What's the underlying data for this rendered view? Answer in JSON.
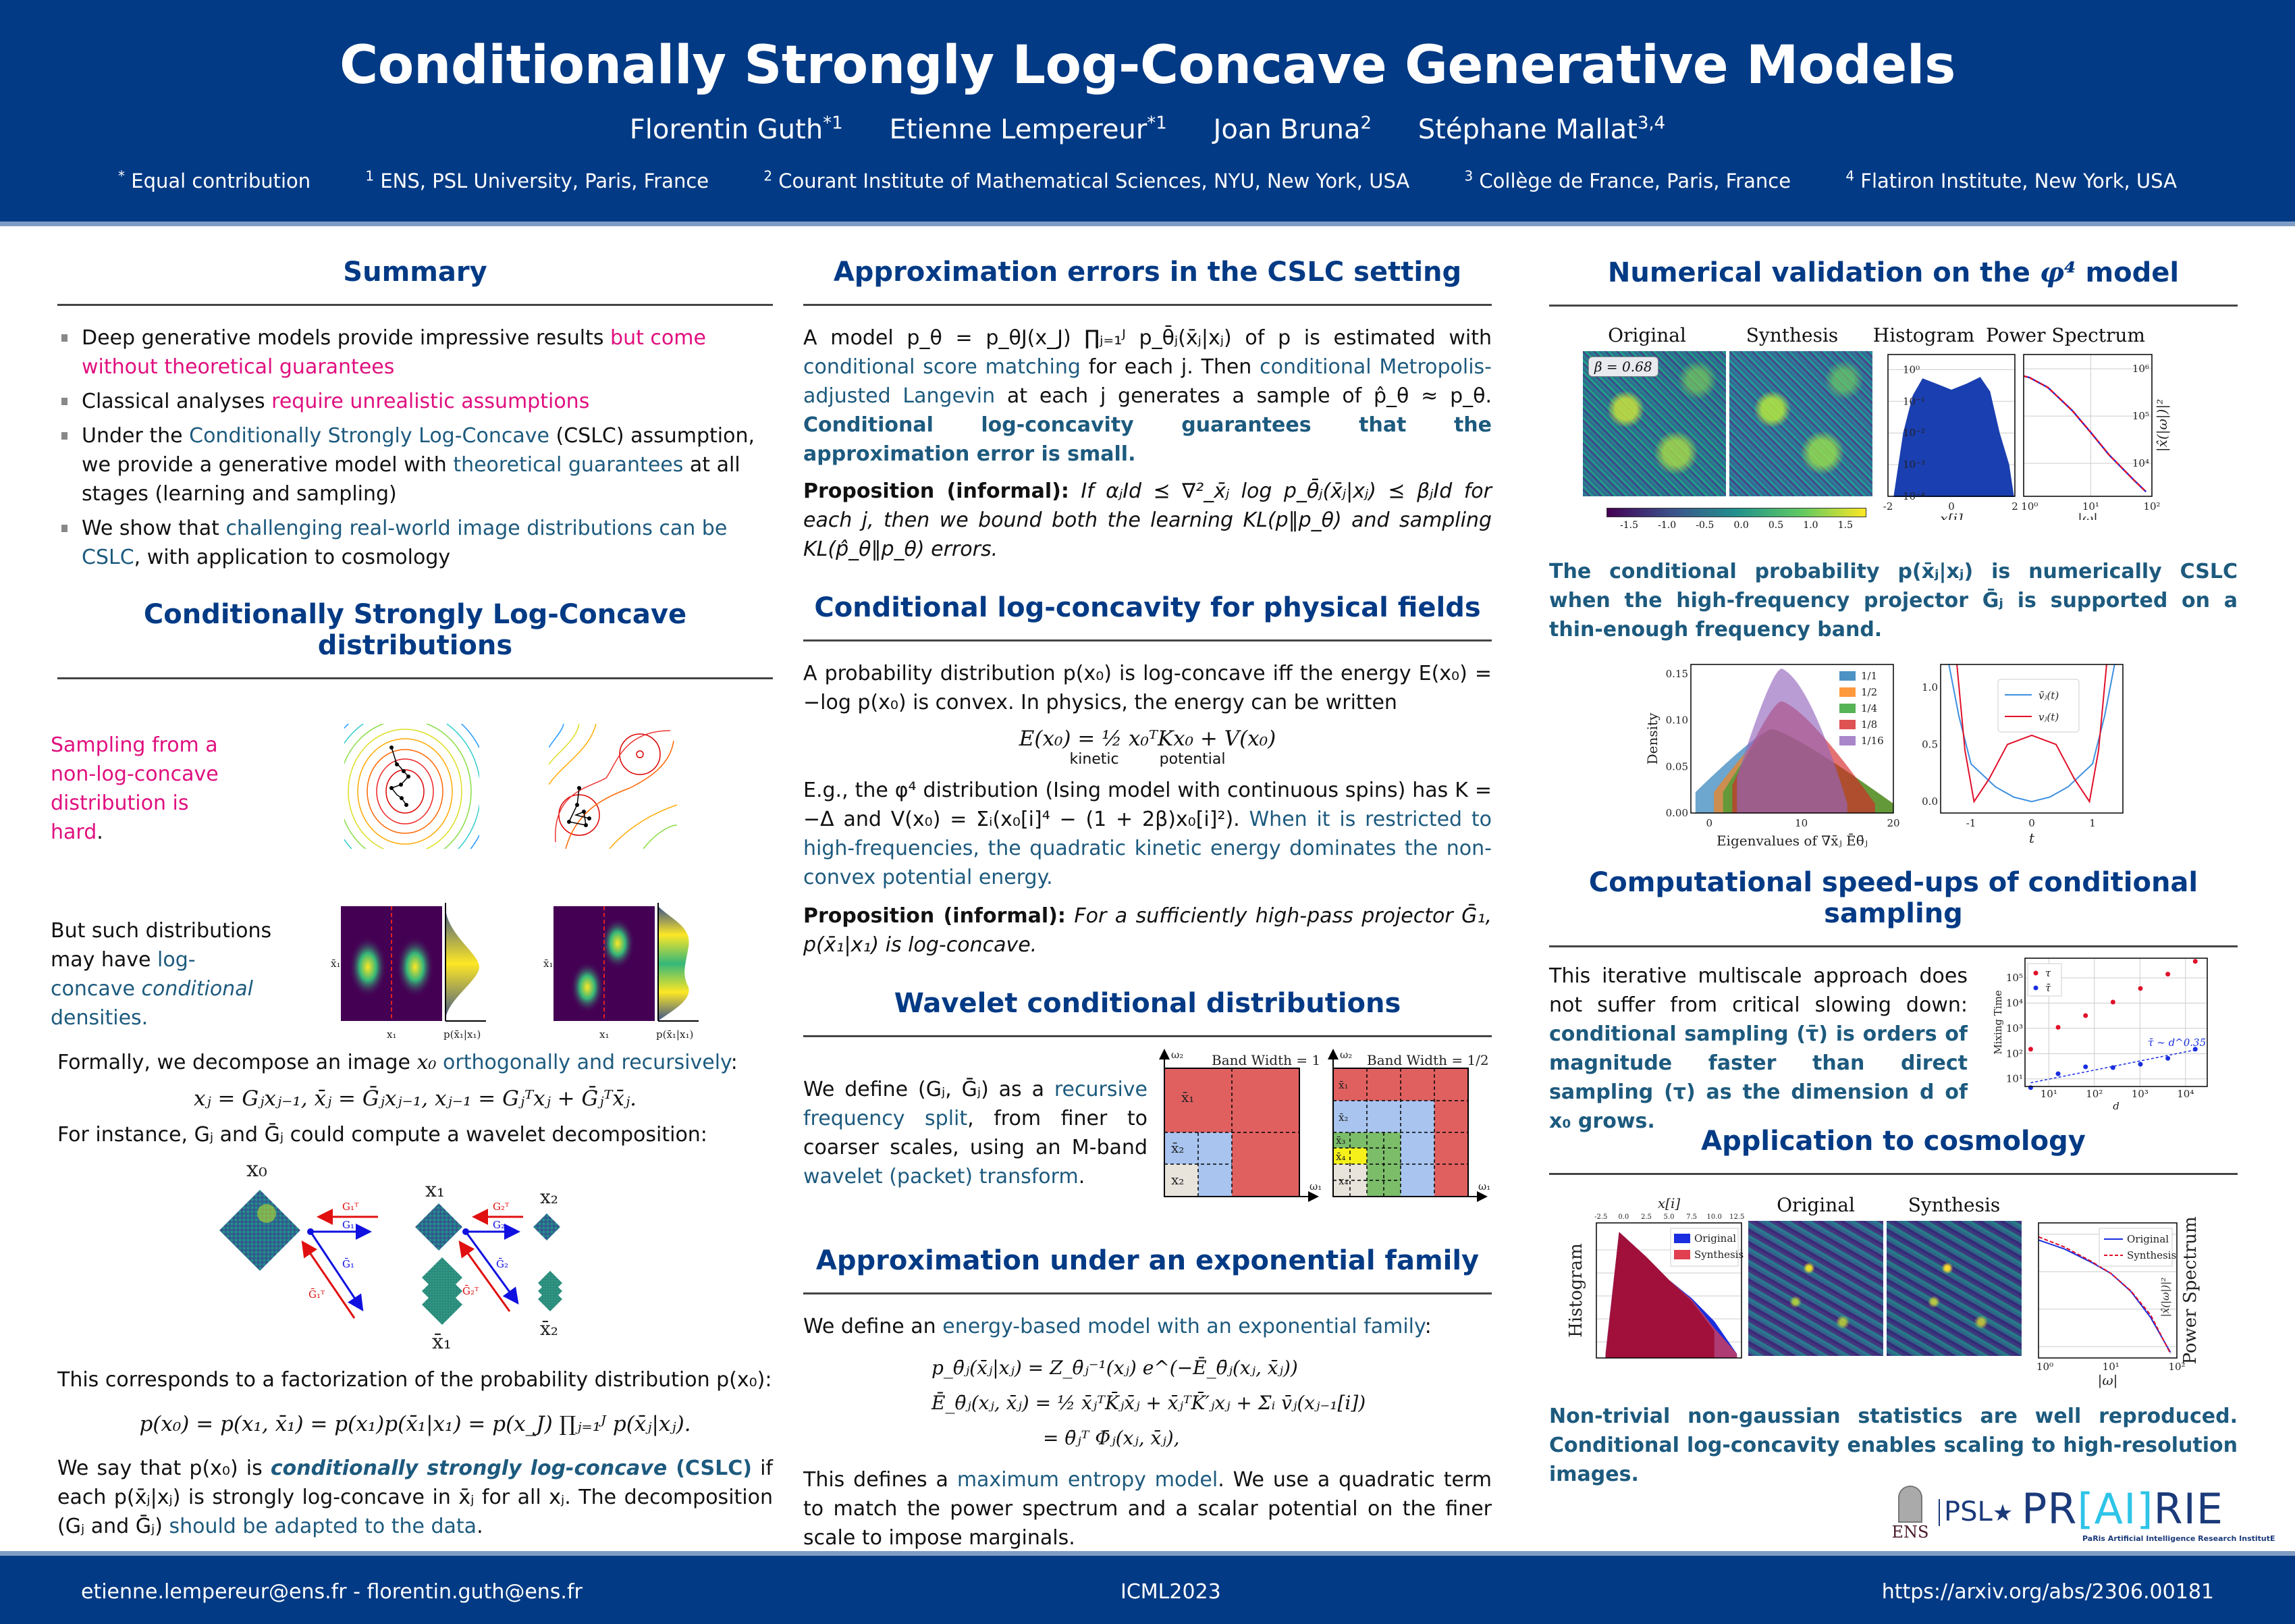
{
  "header": {
    "title": "Conditionally Strongly Log-Concave Generative Models",
    "authors": [
      {
        "name": "Florentin Guth",
        "sup": "*1"
      },
      {
        "name": "Etienne Lempereur",
        "sup": "*1"
      },
      {
        "name": "Joan Bruna",
        "sup": "2"
      },
      {
        "name": "Stéphane Mallat",
        "sup": "3,4"
      }
    ],
    "affiliations": [
      {
        "sup": "*",
        "text": "Equal contribution"
      },
      {
        "sup": "1",
        "text": "ENS, PSL University, Paris, France"
      },
      {
        "sup": "2",
        "text": "Courant Institute of Mathematical Sciences, NYU, New York, USA"
      },
      {
        "sup": "3",
        "text": "Collège de France, Paris, France"
      },
      {
        "sup": "4",
        "text": "Flatiron Institute, New York, USA"
      }
    ]
  },
  "colors": {
    "header_bg": "#023a85",
    "stripe": "#7f9cc4",
    "section_title": "#023a85",
    "highlight_blue": "#1d5a7e",
    "highlight_pink": "#e0107f"
  },
  "summary": {
    "title": "Summary",
    "items": [
      {
        "plain": "Deep generative models provide impressive results ",
        "pink": "but come without theoretical guarantees"
      },
      {
        "plain": "Classical analyses ",
        "pink": "require unrealistic assumptions"
      },
      {
        "plain": "Under the ",
        "blue": "Conditionally Strongly Log-Concave",
        "plain2": " (CSLC) assumption, we provide a generative model with ",
        "blue2": "theoretical guarantees",
        "plain3": " at all stages (learning and sampling)"
      },
      {
        "plain": "We show that ",
        "blue": "challenging real-world image distributions can be CSLC",
        "plain2": ", with application to cosmology"
      }
    ]
  },
  "cslc": {
    "title": "Conditionally Strongly Log-Concave distributions",
    "sampling_text": "Sampling from a non-log-concave distribution is hard",
    "sampling_dot": ".",
    "but_text_1": "But such distributions may have ",
    "but_text_blue": "log-concave",
    "but_text_ital": "conditional",
    "but_text_2": " densities.",
    "axis_labels": {
      "x": "x₁",
      "y": "x̄₁",
      "marginal": "p(x̄₁|x₁)"
    },
    "formal_1": "Formally, we decompose an image ",
    "formal_var": "x₀",
    "formal_blue": "orthogonally and recursively",
    "formal_end": ":",
    "eq_decomp": "xⱼ = Gⱼxⱼ₋₁,   x̄ⱼ = Ḡⱼxⱼ₋₁,   xⱼ₋₁ = Gⱼᵀxⱼ + Ḡⱼᵀx̄ⱼ.",
    "instance_text": "For instance, Gⱼ and Ḡⱼ could compute a wavelet decomposition:",
    "diagram_labels": {
      "x0": "x₀",
      "x1": "x₁",
      "x2": "x₂",
      "xb1": "x̄₁",
      "xb2": "x̄₂",
      "G1T": "G₁ᵀ",
      "G1": "G₁",
      "G2T": "G₂ᵀ",
      "G2": "G₂",
      "Gb1": "Ḡ₁",
      "Gb1T": "Ḡ₁ᵀ",
      "Gb2": "Ḡ₂",
      "Gb2T": "Ḡ₂ᵀ"
    },
    "factor_text": "This corresponds to a factorization of the probability distribution p(x₀):",
    "eq_factor": "p(x₀) = p(x₁, x̄₁) = p(x₁)p(x̄₁|x₁) = p(x_J) ∏ⱼ₌₁ᴶ p(x̄ⱼ|xⱼ).",
    "say_1": "We say that p(x₀) is ",
    "say_bold_ital": "conditionally strongly log-concave",
    "say_bold": " (CSLC)",
    "say_2": " if each p(x̄ⱼ|xⱼ) is strongly log-concave in x̄ⱼ for all xⱼ. The decomposition (Gⱼ and Ḡⱼ) ",
    "say_blue": "should be adapted to the data",
    "say_end": "."
  },
  "approx": {
    "title": "Approximation errors in the CSLC setting",
    "p1_a": "A model p_θ = p_θJ(x_J) ∏ⱼ₌₁ᴶ p_θ̄ⱼ(x̄ⱼ|xⱼ) of p is estimated with ",
    "p1_blue1": "conditional score matching",
    "p1_b": " for each j. Then ",
    "p1_blue2": "conditional Metropolis-adjusted Langevin",
    "p1_c": " at each j generates a sample of p̂_θ ≈ p_θ. ",
    "p1_bold_blue": "Conditional log-concavity guarantees that the approximation error is small.",
    "prop_label": "Proposition (informal):",
    "prop_text": " If αⱼId ⪯ ∇²_x̄ⱼ log p_θ̄ⱼ(x̄ⱼ|xⱼ) ⪯ βⱼId for each j, then we bound both the learning KL(p‖p_θ) and sampling KL(p̂_θ‖p_θ) errors."
  },
  "physical": {
    "title": "Conditional log-concavity for physical fields",
    "p1": "A probability distribution p(x₀) is log-concave iff the energy E(x₀) = −log p(x₀) is convex. In physics, the energy can be written",
    "eq_energy": "E(x₀) = ½ x₀ᵀKx₀ + V(x₀)",
    "kinetic": "kinetic",
    "potential": "potential",
    "p2_a": "E.g., the φ⁴ distribution (Ising model with continuous spins) has K = −Δ and V(x₀) = Σᵢ(x₀[i]⁴ − (1 + 2β)x₀[i]²). ",
    "p2_blue": "When it is restricted to high-frequencies, the quadratic kinetic energy dominates the non-convex potential energy.",
    "prop_label": "Proposition (informal):",
    "prop_text": " For a sufficiently high-pass projector Ḡ₁, p(x̄₁|x₁) is log-concave."
  },
  "wavelet": {
    "title": "Wavelet conditional distributions",
    "p_a": "We define (Gⱼ, Ḡⱼ) as a ",
    "p_blue1": "recursive frequency split",
    "p_b": ", from finer to coarser scales, using an M-band ",
    "p_blue2": "wavelet (packet) transform",
    "p_end": ".",
    "fig1_title": "Band Width = 1",
    "fig2_title": "Band Width = 1/2",
    "axis_w1": "ω₁",
    "axis_w2": "ω₂",
    "fig1_labels": [
      "x̄₁",
      "x̄₂",
      "x₂"
    ],
    "fig2_labels": [
      "x̄₁",
      "x̄₂",
      "x̄₃",
      "x̄₄",
      "x₄"
    ]
  },
  "expfam": {
    "title": "Approximation under an exponential family",
    "p1_a": "We define an ",
    "p1_blue": "energy-based model with an exponential family",
    "p1_end": ":",
    "eq1": "p_θ̄ⱼ(x̄ⱼ|xⱼ) = Z_θ̄ⱼ⁻¹(xⱼ) e^(−Ē_θ̄ⱼ(xⱼ, x̄ⱼ))",
    "eq2": "Ē_θ̄ⱼ(xⱼ, x̄ⱼ) = ½ x̄ⱼᵀK̄ⱼx̄ⱼ + x̄ⱼᵀK̄′ⱼxⱼ + Σᵢ v̄ⱼ(xⱼ₋₁[i])",
    "eq3": "= θ̄ⱼᵀ Φ̄ⱼ(xⱼ, x̄ⱼ),",
    "p2_a": "This defines a ",
    "p2_blue": "maximum entropy model",
    "p2_b": ". We use a quadratic term to match the power spectrum and a scalar potential on the finer scale to impose marginals."
  },
  "numerical": {
    "title_a": "Numerical validation on the ",
    "title_math": "φ⁴",
    "title_b": " model",
    "panel_titles": [
      "Original",
      "Synthesis",
      "Histogram",
      "Power Spectrum"
    ],
    "beta_label": "β = 0.68",
    "colorbar_ticks": [
      "-1.5",
      "-1.0",
      "-0.5",
      "0.0",
      "0.5",
      "1.0",
      "1.5"
    ],
    "conclusion": "The conditional probability p(x̄ⱼ|xⱼ) is numerically CSLC when the high-frequency projector Ḡⱼ is supported on a thin-enough frequency band."
  },
  "speedup": {
    "title": "Computational speed-ups of conditional sampling",
    "p_a": "This iterative multiscale approach does not suffer from critical slowing down: ",
    "p_blue": "conditional sampling (τ̄) is orders of magnitude faster than direct sampling (τ) as the dimension d of x₀ grows."
  },
  "cosmology": {
    "title": "Application to cosmology",
    "panel_titles": [
      "Original",
      "Synthesis"
    ],
    "hist_ylabel": "Histogram",
    "ps_ylabel": "Power Spectrum",
    "conclusion": "Non-trivial non-gaussian statistics are well reproduced. Conditional log-concavity enables scaling to high-resolution images."
  },
  "logos": {
    "ens": "ENS",
    "psl": "PSL",
    "prairie_a": "PR",
    "prairie_b": "[AI]",
    "prairie_c": "RIE",
    "prairie_sub": "PaRis Artificial Intelligence Research InstitutE"
  },
  "footer": {
    "emails": "etienne.lempereur@ens.fr - florentin.guth@ens.fr",
    "conference": "ICML2023",
    "url": "https://arxiv.org/abs/2306.00181"
  },
  "chart_data": [
    {
      "id": "phi4-histogram",
      "type": "area",
      "title": "Histogram",
      "xlabel": "x[i]",
      "ylabel": "",
      "xlim": [
        -2,
        2
      ],
      "yscale": "log",
      "ylim": [
        0.0001,
        3
      ],
      "x_ticks": [
        "-2",
        "0",
        "2"
      ],
      "y_ticks": [
        "10⁰",
        "10⁻¹",
        "10⁻²",
        "10⁻³",
        "10⁻⁴"
      ],
      "series": [
        {
          "name": "Original",
          "color": "#1a3fb0",
          "x": [
            -1.8,
            -1.5,
            -1.2,
            -0.9,
            -0.5,
            0,
            0.5,
            0.9,
            1.2,
            1.5,
            1.8,
            1.95
          ],
          "y": [
            0.0001,
            0.01,
            0.15,
            0.5,
            0.35,
            0.22,
            0.35,
            0.55,
            0.2,
            0.01,
            0.001,
            0.0001
          ]
        },
        {
          "name": "Synthesis",
          "color": "#8b0013",
          "x": [
            -1.8,
            -1.5,
            -1.2,
            -0.9,
            -0.5,
            0,
            0.5,
            0.9,
            1.2,
            1.5,
            1.8,
            1.95
          ],
          "y": [
            0.0001,
            0.01,
            0.15,
            0.5,
            0.35,
            0.22,
            0.35,
            0.55,
            0.2,
            0.01,
            0.001,
            0.0001
          ]
        }
      ]
    },
    {
      "id": "phi4-power-spectrum",
      "type": "line",
      "title": "Power Spectrum",
      "xlabel": "|ω|",
      "ylabel": "|x̂(|ω|)|²",
      "xscale": "log",
      "yscale": "log",
      "xlim": [
        0.8,
        100
      ],
      "ylim": [
        2000,
        2000000
      ],
      "x_ticks": [
        "10⁰",
        "10¹",
        "10²"
      ],
      "y_ticks": [
        "10⁶",
        "10⁵",
        "10⁴"
      ],
      "series": [
        {
          "name": "Original",
          "color": "#1a2ee0",
          "x": [
            0.8,
            1,
            2,
            5,
            10,
            20,
            50,
            80
          ],
          "y": [
            700000,
            650000,
            400000,
            130000,
            45000,
            15000,
            4500,
            2500
          ]
        },
        {
          "name": "Synthesis",
          "color": "#e0102a",
          "x": [
            0.8,
            1,
            2,
            5,
            10,
            20,
            50,
            80
          ],
          "y": [
            700000,
            650000,
            400000,
            130000,
            45000,
            15000,
            4500,
            2500
          ]
        }
      ]
    },
    {
      "id": "eigenvalue-density",
      "type": "bar",
      "xlabel": "Eigenvalues of ∇x̄ⱼ Ēθ̄ⱼ",
      "ylabel": "Density",
      "xlim": [
        -2,
        20
      ],
      "ylim": [
        0,
        0.16
      ],
      "x_ticks": [
        "0",
        "10",
        "20"
      ],
      "y_ticks": [
        "0.00",
        "0.05",
        "0.10",
        "0.15"
      ],
      "legend_position": "top-right",
      "series": [
        {
          "name": "1/1",
          "color": "#1f77b4",
          "peak_x": 7,
          "peak_y": 0.09,
          "support": [
            -1.5,
            20
          ]
        },
        {
          "name": "1/2",
          "color": "#ff7f0e",
          "peak_x": 7,
          "peak_y": 0.09,
          "support": [
            0.5,
            20
          ]
        },
        {
          "name": "1/4",
          "color": "#2ca02c",
          "peak_x": 7,
          "peak_y": 0.09,
          "support": [
            1.5,
            20
          ]
        },
        {
          "name": "1/8",
          "color": "#d62728",
          "peak_x": 8,
          "peak_y": 0.12,
          "support": [
            2.5,
            18
          ]
        },
        {
          "name": "1/16",
          "color": "#9467bd",
          "peak_x": 8,
          "peak_y": 0.155,
          "support": [
            3,
            15
          ]
        }
      ]
    },
    {
      "id": "potential-curves",
      "type": "line",
      "xlabel": "t",
      "ylabel": "",
      "xlim": [
        -1.5,
        1.5
      ],
      "ylim": [
        -0.1,
        1.2
      ],
      "x_ticks": [
        "-1",
        "0",
        "1"
      ],
      "y_ticks": [
        "0.0",
        "0.5",
        "1.0"
      ],
      "legend_position": "top-center",
      "series": [
        {
          "name": "v̄ⱼ(t)",
          "color": "#3d8fe0",
          "x": [
            -1.4,
            -1.2,
            -1,
            -0.6,
            -0.3,
            0,
            0.3,
            0.6,
            1,
            1.2,
            1.4
          ],
          "y": [
            1.3,
            0.75,
            0.33,
            0.13,
            0.04,
            0.0,
            0.04,
            0.13,
            0.33,
            0.75,
            1.3
          ]
        },
        {
          "name": "vⱼ(t)",
          "color": "#e0102a",
          "x": [
            -1.25,
            -1.1,
            -0.95,
            -0.7,
            -0.4,
            0,
            0.4,
            0.7,
            0.95,
            1.1,
            1.25
          ],
          "y": [
            1.3,
            0.45,
            0.0,
            0.2,
            0.5,
            0.58,
            0.5,
            0.2,
            0.0,
            0.45,
            1.3
          ]
        }
      ]
    },
    {
      "id": "mixing-time",
      "type": "scatter",
      "xlabel": "d",
      "ylabel": "Mixing Time",
      "xscale": "log",
      "yscale": "log",
      "xlim": [
        3,
        30000
      ],
      "ylim": [
        5,
        600000
      ],
      "x_ticks": [
        "10¹",
        "10²",
        "10³",
        "10⁴"
      ],
      "y_ticks": [
        "10¹",
        "10²",
        "10³",
        "10⁴",
        "10⁵"
      ],
      "legend_position": "top-left",
      "annotation": "τ̄ ∼ d^0.35",
      "series": [
        {
          "name": "τ",
          "color": "#e0102a",
          "x": [
            4,
            16,
            64,
            256,
            1024,
            4096,
            16384
          ],
          "y": [
            150,
            1100,
            3200,
            11000,
            38000,
            140000,
            450000
          ]
        },
        {
          "name": "τ̄",
          "color": "#1a2ee0",
          "x": [
            4,
            16,
            64,
            256,
            1024,
            4096,
            16384
          ],
          "y": [
            4.5,
            16,
            30,
            28,
            38,
            65,
            150
          ]
        }
      ]
    },
    {
      "id": "cosmo-histogram",
      "type": "area",
      "xlabel": "x[i]",
      "ylabel": "Histogram",
      "xlim": [
        -3,
        13
      ],
      "yscale": "log",
      "ylim": [
        2e-06,
        1.5
      ],
      "x_ticks": [
        "-2.5",
        "0.0",
        "2.5",
        "5.0",
        "7.5",
        "10.0",
        "12.5"
      ],
      "legend_position": "top-right",
      "series": [
        {
          "name": "Original",
          "color": "#1a2ee0",
          "x": [
            -2,
            -0.5,
            0,
            2.5,
            5,
            7.5,
            10,
            12.5
          ],
          "y": [
            3e-06,
            0.6,
            0.4,
            0.05,
            0.005,
            0.0008,
            8e-05,
            3e-06
          ]
        },
        {
          "name": "Synthesis",
          "color": "#e04050",
          "x": [
            -2,
            -0.5,
            0,
            2.5,
            5,
            7.5,
            10,
            12.5
          ],
          "y": [
            3e-06,
            0.6,
            0.4,
            0.05,
            0.005,
            0.0007,
            4e-05,
            3e-06
          ]
        }
      ]
    },
    {
      "id": "cosmo-power-spectrum",
      "type": "line",
      "xlabel": "|ω|",
      "ylabel": "|x̂(|ω|)|²",
      "title_side": "Power Spectrum",
      "xscale": "log",
      "yscale": "log",
      "xlim": [
        0.8,
        100
      ],
      "ylim": [
        500,
        2000000
      ],
      "x_ticks": [
        "10⁰",
        "10¹",
        "10²"
      ],
      "legend_position": "top-right",
      "series": [
        {
          "name": "Original",
          "color": "#1a2ee0",
          "x": [
            0.8,
            2,
            5,
            10,
            20,
            40,
            80
          ],
          "y": [
            700000,
            400000,
            180000,
            90000,
            30000,
            6000,
            700
          ]
        },
        {
          "name": "Synthesis",
          "color": "#e0102a",
          "x": [
            0.8,
            2,
            5,
            10,
            20,
            40,
            80
          ],
          "y": [
            850000,
            450000,
            190000,
            90000,
            31000,
            7000,
            650
          ]
        }
      ]
    }
  ]
}
